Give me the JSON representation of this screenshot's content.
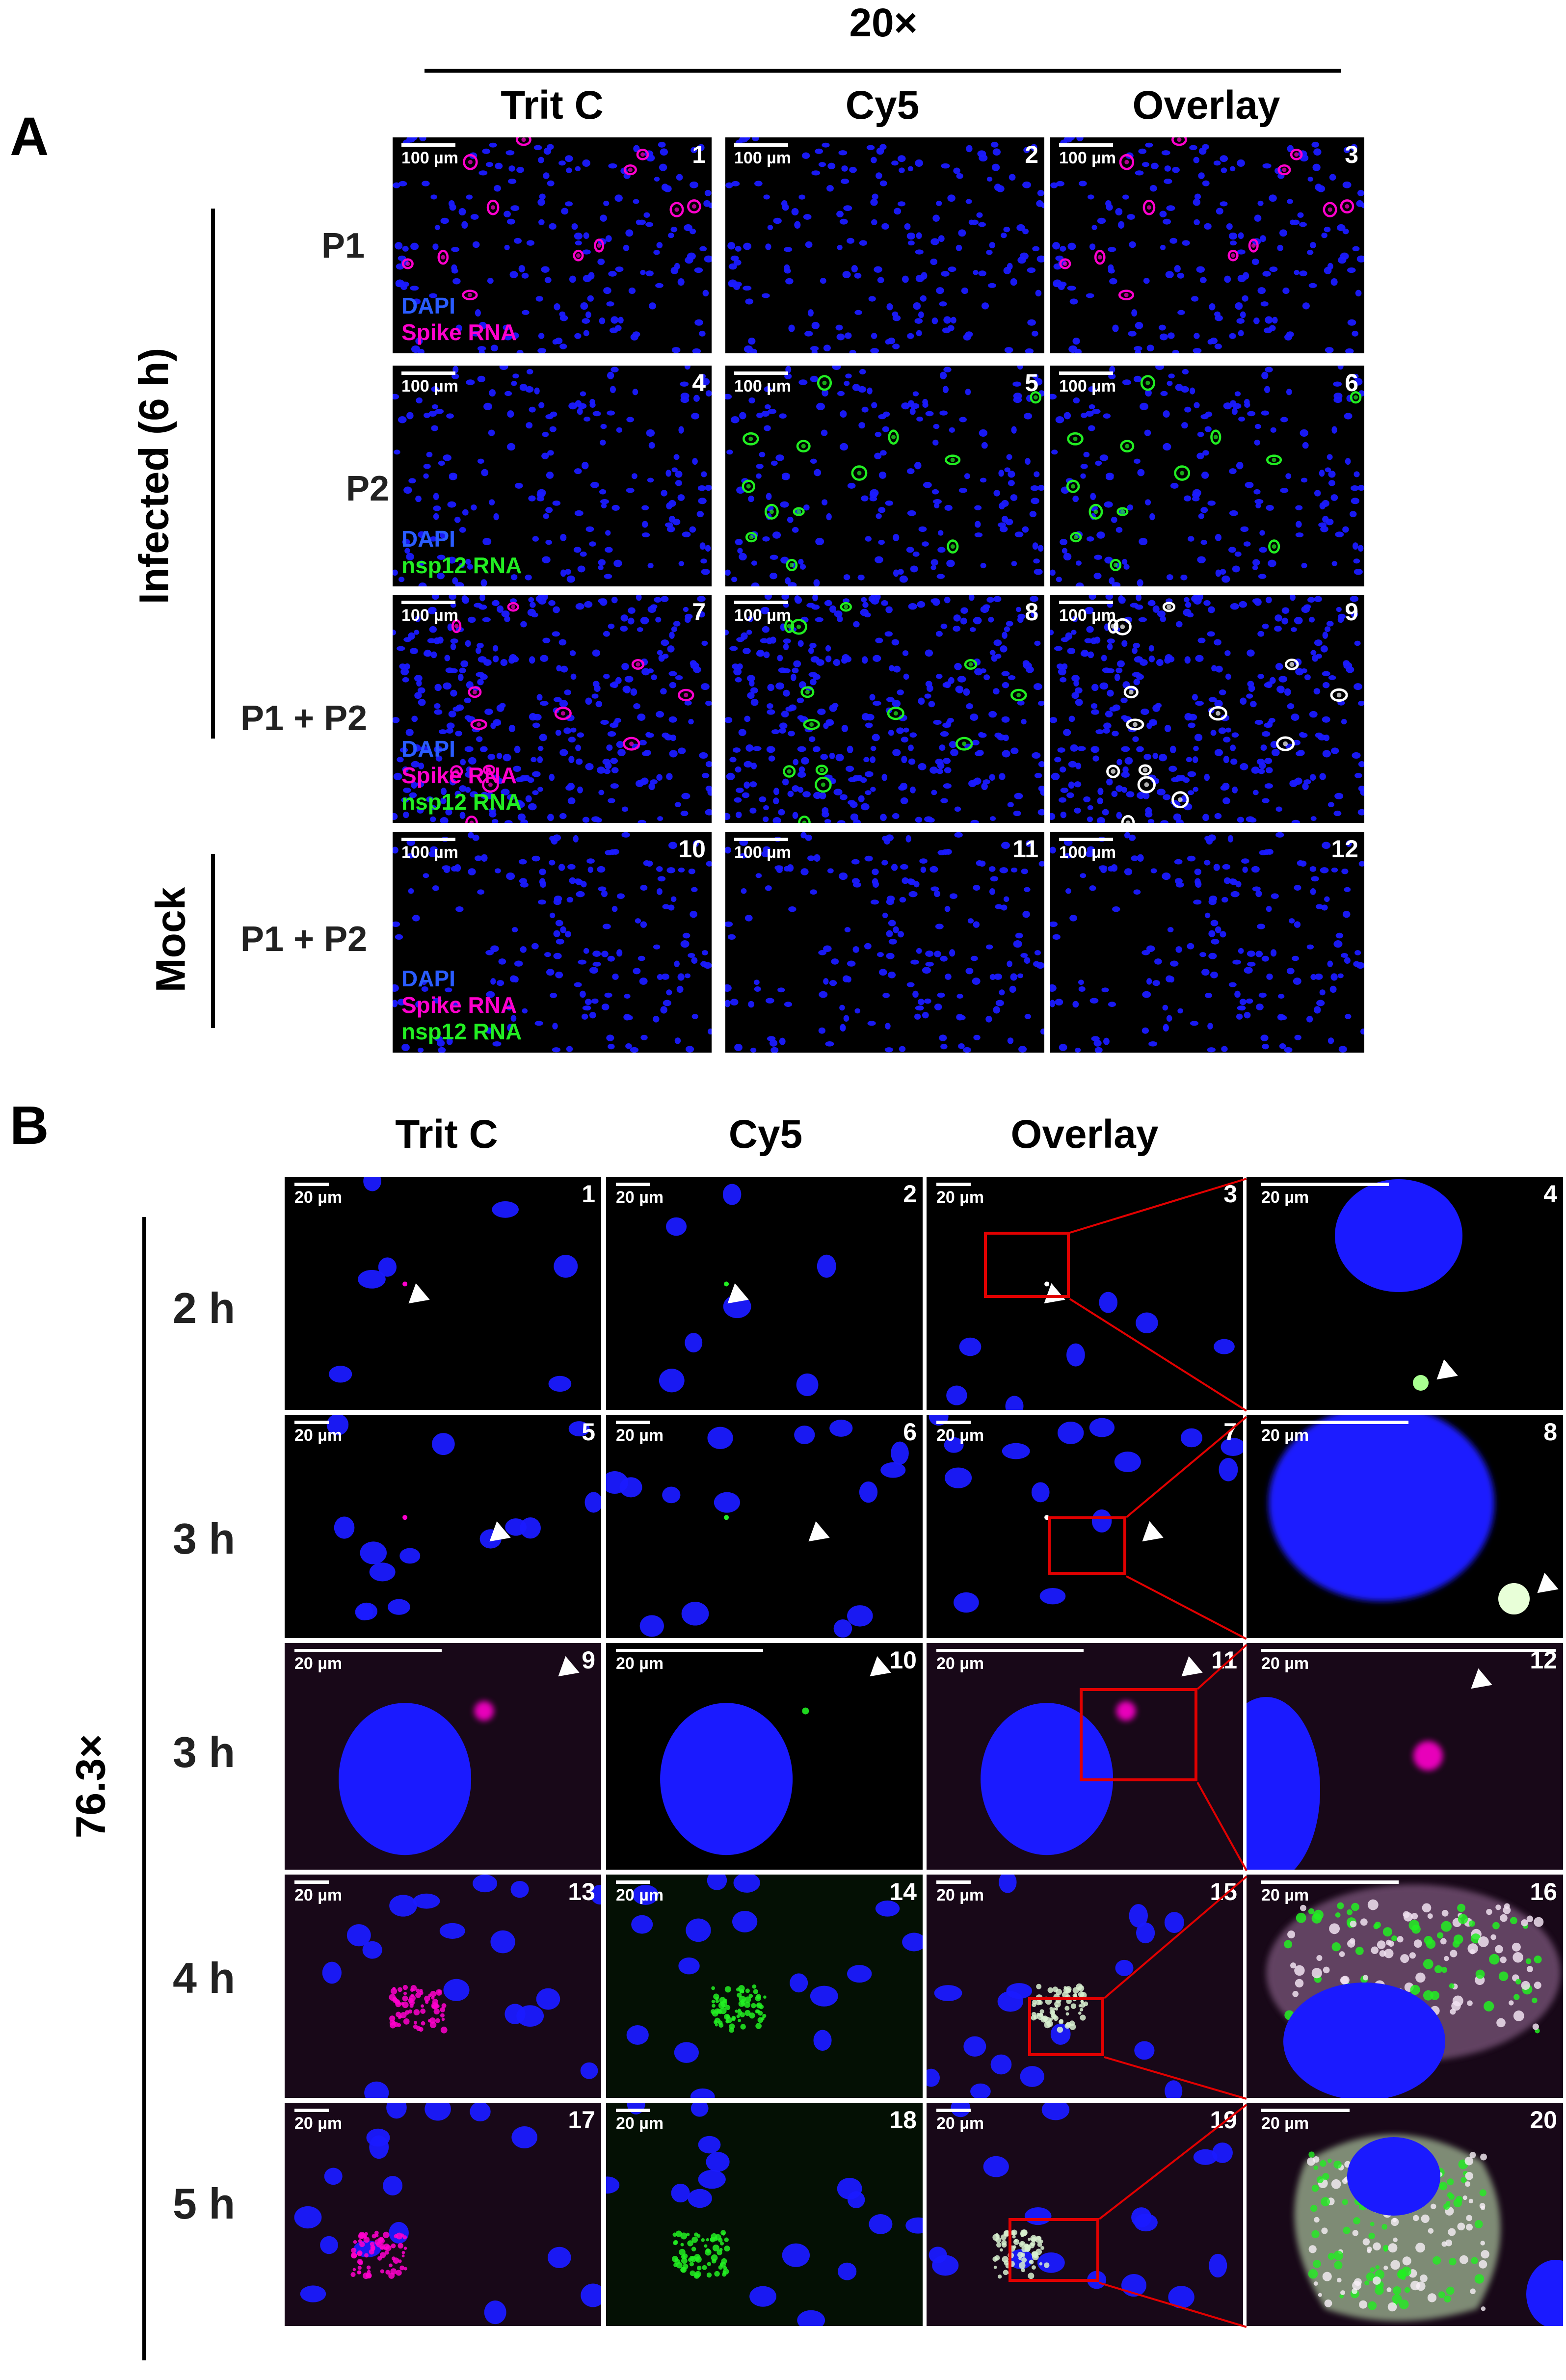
{
  "panel_a": {
    "letter": "A",
    "magnification": "20×",
    "columns": [
      "Trit C",
      "Cy5",
      "Overlay"
    ],
    "group_infected": "Infected (6 h)",
    "group_mock": "Mock",
    "rows": [
      {
        "label": "P1",
        "tiles": [
          "1",
          "2",
          "3"
        ],
        "legend": [
          "DAPI",
          "Spike RNA"
        ]
      },
      {
        "label": "P2",
        "tiles": [
          "4",
          "5",
          "6"
        ],
        "legend": [
          "DAPI",
          "nsp12 RNA"
        ]
      },
      {
        "label": "P1 + P2",
        "tiles": [
          "7",
          "8",
          "9"
        ],
        "legend": [
          "DAPI",
          "Spike RNA",
          "nsp12 RNA"
        ]
      },
      {
        "label": "P1 + P2",
        "tiles": [
          "10",
          "11",
          "12"
        ],
        "legend": [
          "DAPI",
          "Spike RNA",
          "nsp12 RNA"
        ]
      }
    ],
    "scale_bar": "100 µm"
  },
  "panel_b": {
    "letter": "B",
    "magnification": "76.3×",
    "columns": [
      "Trit C",
      "Cy5",
      "Overlay"
    ],
    "rows": [
      {
        "label": "2 h",
        "tiles": [
          "1",
          "2",
          "3",
          "4"
        ]
      },
      {
        "label": "3 h",
        "tiles": [
          "5",
          "6",
          "7",
          "8"
        ]
      },
      {
        "label": "3 h",
        "tiles": [
          "9",
          "10",
          "11",
          "12"
        ]
      },
      {
        "label": "4 h",
        "tiles": [
          "13",
          "14",
          "15",
          "16"
        ]
      },
      {
        "label": "5 h",
        "tiles": [
          "17",
          "18",
          "19",
          "20"
        ]
      }
    ],
    "scale_bar": "20 µm"
  },
  "colors": {
    "dapi": "#1a1aff",
    "spike": "#ff00cc",
    "nsp12": "#22ee22",
    "zoom_box": "#e10000",
    "tile_bg": "#000000"
  }
}
